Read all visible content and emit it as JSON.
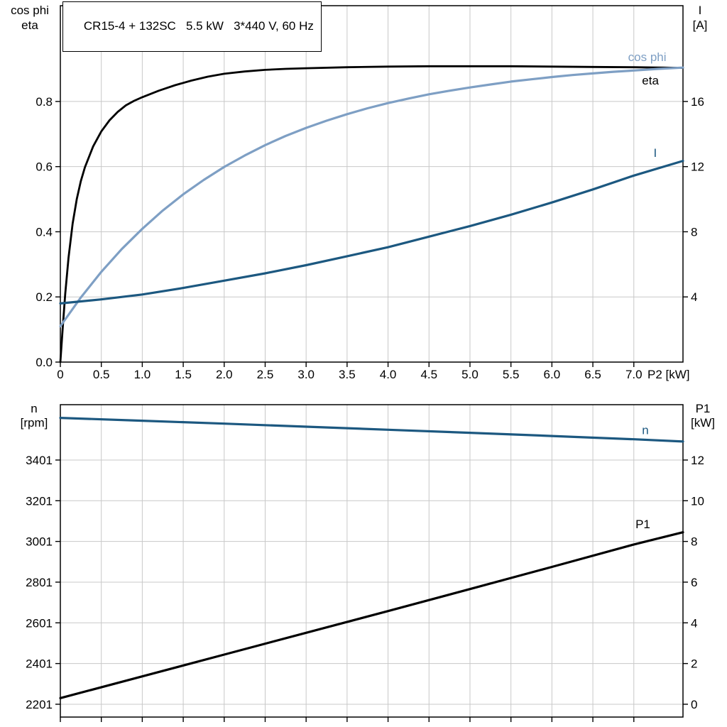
{
  "title_box": {
    "text": "CR15-4 + 132SC   5.5 kW   3*440 V, 60 Hz"
  },
  "colors": {
    "background": "#ffffff",
    "grid": "#c8c8c8",
    "frame": "#000000",
    "text": "#000000",
    "eta": "#000000",
    "cos_phi": "#7e9fc4",
    "current": "#1c5880",
    "speed": "#1c5880",
    "p1": "#000000"
  },
  "chart_data": [
    {
      "type": "line",
      "name": "motor-performance-top-panel",
      "title": "CR15-4 + 132SC   5.5 kW   3*440 V, 60 Hz",
      "x_axis": {
        "label": "P2 [kW]",
        "lim": [
          0,
          7.6
        ],
        "ticks": [
          0,
          0.5,
          1,
          1.5,
          2,
          2.5,
          3,
          3.5,
          4,
          4.5,
          5,
          5.5,
          6,
          6.5,
          7
        ],
        "tick_labels": [
          "0",
          "0.5",
          "1.0",
          "1.5",
          "2.0",
          "2.5",
          "3.0",
          "3.5",
          "4.0",
          "4.5",
          "5.0",
          "5.5",
          "6.0",
          "6.5",
          "7.0"
        ]
      },
      "y_left": {
        "label_lines": [
          "cos phi",
          "eta"
        ],
        "lim": [
          0,
          1.094
        ],
        "ticks": [
          0,
          0.2,
          0.4,
          0.6,
          0.8
        ],
        "tick_labels": [
          "0.0",
          "0.2",
          "0.4",
          "0.6",
          "0.8"
        ]
      },
      "y_right": {
        "label_lines": [
          "I",
          "[A]"
        ],
        "lim": [
          0,
          21.88
        ],
        "ticks": [
          4,
          8,
          12,
          16
        ],
        "tick_labels": [
          "4",
          "8",
          "12",
          "16"
        ]
      },
      "grid": true,
      "legend_position": "curve-end-labels",
      "series": [
        {
          "name": "eta",
          "axis": "left",
          "color": "eta",
          "width": 2.8,
          "points": [
            [
              0,
              0
            ],
            [
              0.03,
              0.11
            ],
            [
              0.06,
              0.21
            ],
            [
              0.1,
              0.32
            ],
            [
              0.15,
              0.425
            ],
            [
              0.2,
              0.5
            ],
            [
              0.25,
              0.555
            ],
            [
              0.3,
              0.598
            ],
            [
              0.4,
              0.662
            ],
            [
              0.5,
              0.708
            ],
            [
              0.6,
              0.742
            ],
            [
              0.7,
              0.768
            ],
            [
              0.8,
              0.788
            ],
            [
              0.9,
              0.802
            ],
            [
              1.0,
              0.813
            ],
            [
              1.2,
              0.833
            ],
            [
              1.4,
              0.85
            ],
            [
              1.6,
              0.864
            ],
            [
              1.8,
              0.876
            ],
            [
              2.0,
              0.885
            ],
            [
              2.25,
              0.892
            ],
            [
              2.5,
              0.897
            ],
            [
              2.75,
              0.9
            ],
            [
              3.0,
              0.902
            ],
            [
              3.5,
              0.905
            ],
            [
              4.0,
              0.907
            ],
            [
              4.5,
              0.908
            ],
            [
              5.0,
              0.908
            ],
            [
              5.5,
              0.908
            ],
            [
              6.0,
              0.907
            ],
            [
              6.5,
              0.906
            ],
            [
              7.0,
              0.905
            ],
            [
              7.6,
              0.903
            ]
          ]
        },
        {
          "name": "cos phi",
          "axis": "left",
          "color": "cos_phi",
          "width": 3.2,
          "points": [
            [
              0,
              0.11
            ],
            [
              0.25,
              0.198
            ],
            [
              0.5,
              0.277
            ],
            [
              0.75,
              0.347
            ],
            [
              1.0,
              0.409
            ],
            [
              1.25,
              0.465
            ],
            [
              1.5,
              0.515
            ],
            [
              1.75,
              0.559
            ],
            [
              2.0,
              0.599
            ],
            [
              2.25,
              0.634
            ],
            [
              2.5,
              0.666
            ],
            [
              2.75,
              0.694
            ],
            [
              3.0,
              0.719
            ],
            [
              3.25,
              0.741
            ],
            [
              3.5,
              0.761
            ],
            [
              3.75,
              0.779
            ],
            [
              4.0,
              0.795
            ],
            [
              4.25,
              0.809
            ],
            [
              4.5,
              0.822
            ],
            [
              4.75,
              0.833
            ],
            [
              5.0,
              0.843
            ],
            [
              5.25,
              0.852
            ],
            [
              5.5,
              0.861
            ],
            [
              5.75,
              0.868
            ],
            [
              6.0,
              0.875
            ],
            [
              6.25,
              0.881
            ],
            [
              6.5,
              0.886
            ],
            [
              6.75,
              0.891
            ],
            [
              7.0,
              0.895
            ],
            [
              7.3,
              0.9
            ],
            [
              7.6,
              0.904
            ]
          ]
        },
        {
          "name": "I",
          "axis": "right",
          "color": "current",
          "width": 3.2,
          "points": [
            [
              0,
              3.6
            ],
            [
              0.5,
              3.85
            ],
            [
              1.0,
              4.15
            ],
            [
              1.5,
              4.55
            ],
            [
              2.0,
              5.0
            ],
            [
              2.5,
              5.45
            ],
            [
              3.0,
              5.95
            ],
            [
              3.5,
              6.5
            ],
            [
              4.0,
              7.05
            ],
            [
              4.5,
              7.7
            ],
            [
              5.0,
              8.35
            ],
            [
              5.5,
              9.05
            ],
            [
              6.0,
              9.8
            ],
            [
              6.5,
              10.6
            ],
            [
              7.0,
              11.45
            ],
            [
              7.6,
              12.35
            ]
          ]
        }
      ],
      "curve_labels": [
        {
          "text": "cos phi",
          "axis": "left",
          "x": 6.93,
          "y": 0.924,
          "color": "cos_phi"
        },
        {
          "text": "eta",
          "axis": "left",
          "x": 7.1,
          "y": 0.852,
          "color": "eta"
        },
        {
          "text": "I",
          "axis": "right",
          "x": 7.24,
          "y": 12.6,
          "color": "current"
        }
      ]
    },
    {
      "type": "line",
      "name": "motor-performance-bottom-panel",
      "title": "",
      "x_axis": {
        "label": "",
        "lim": [
          0,
          7.6
        ],
        "ticks": [
          0,
          0.5,
          1,
          1.5,
          2,
          2.5,
          3,
          3.5,
          4,
          4.5,
          5,
          5.5,
          6,
          6.5,
          7
        ],
        "tick_labels": []
      },
      "y_left": {
        "label_lines": [
          "n",
          "[rpm]"
        ],
        "lim": [
          2138,
          3673
        ],
        "ticks": [
          2201,
          2401,
          2601,
          2801,
          3001,
          3201,
          3401
        ],
        "tick_labels": [
          "2201",
          "2401",
          "2601",
          "2801",
          "3001",
          "3201",
          "3401"
        ]
      },
      "y_right": {
        "label_lines": [
          "P1",
          "[kW]"
        ],
        "lim": [
          -0.63,
          14.72
        ],
        "ticks": [
          0,
          2,
          4,
          6,
          8,
          10,
          12
        ],
        "tick_labels": [
          "0",
          "2",
          "4",
          "6",
          "8",
          "10",
          "12"
        ]
      },
      "grid": true,
      "legend_position": "curve-end-labels",
      "series": [
        {
          "name": "n",
          "axis": "left",
          "color": "speed",
          "width": 3.2,
          "points": [
            [
              0,
              3608
            ],
            [
              1,
              3594
            ],
            [
              2,
              3580
            ],
            [
              3,
              3565
            ],
            [
              4,
              3550
            ],
            [
              5,
              3535
            ],
            [
              6,
              3519
            ],
            [
              7,
              3503
            ],
            [
              7.6,
              3492
            ]
          ]
        },
        {
          "name": "P1",
          "axis": "right",
          "color": "p1",
          "width": 3.2,
          "points": [
            [
              0,
              0.3
            ],
            [
              1,
              1.37
            ],
            [
              2,
              2.44
            ],
            [
              3,
              3.51
            ],
            [
              4,
              4.58
            ],
            [
              5,
              5.66
            ],
            [
              6,
              6.75
            ],
            [
              7,
              7.85
            ],
            [
              7.6,
              8.45
            ]
          ]
        }
      ],
      "curve_labels": [
        {
          "text": "n",
          "axis": "left",
          "x": 7.1,
          "y": 3528,
          "color": "speed"
        },
        {
          "text": "P1",
          "axis": "right",
          "x": 7.02,
          "y": 8.65,
          "color": "p1"
        }
      ]
    }
  ]
}
